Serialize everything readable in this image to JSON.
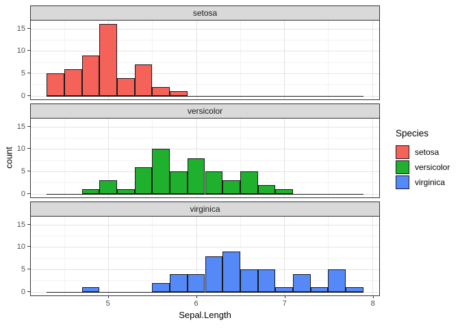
{
  "figure": {
    "background": "#FFFFFF",
    "panel": {
      "border_color": "#333333",
      "strip_fill": "#D9D9D9",
      "grid_major_color": "#E3E3E3",
      "grid_minor_color": "#F2F2F2",
      "bar_stroke_color": "#1A1A1A"
    },
    "x_axis": {
      "title": "Sepal.Length",
      "ticks": [
        5,
        6,
        7,
        8
      ],
      "minor_ticks": [
        4.5,
        5.5,
        6.5,
        7.5
      ],
      "domain": [
        4.12,
        8.08
      ]
    },
    "y_axis": {
      "title": "count",
      "ticks": [
        0,
        5,
        10,
        15
      ],
      "minor_ticks": [
        2.5,
        7.5,
        12.5
      ],
      "domain": [
        -0.8,
        16.8
      ]
    }
  },
  "legend": {
    "title": "Species",
    "items": [
      {
        "label": "setosa",
        "color": "#F4625A"
      },
      {
        "label": "versicolor",
        "color": "#1FB02E"
      },
      {
        "label": "virginica",
        "color": "#5589F7"
      }
    ]
  },
  "chart_data": {
    "type": "bar",
    "subtype": "faceted-histogram",
    "title": "",
    "xlabel": "Sepal.Length",
    "ylabel": "count",
    "bin_start": 4.3,
    "bin_width": 0.2,
    "bin_end": 7.9,
    "xlim": [
      4.12,
      8.08
    ],
    "ylim": [
      -0.8,
      16.8
    ],
    "grid": true,
    "legend_position": "right",
    "bin_edges": [
      4.3,
      4.5,
      4.7,
      4.9,
      5.1,
      5.3,
      5.5,
      5.7,
      5.9,
      6.1,
      6.3,
      6.5,
      6.7,
      6.9,
      7.1,
      7.3,
      7.5,
      7.7,
      7.9
    ],
    "facets": [
      {
        "label": "setosa",
        "color": "#F4625A",
        "counts": [
          5,
          6,
          9,
          16,
          4,
          7,
          2,
          1,
          0,
          0,
          0,
          0,
          0,
          0,
          0,
          0,
          0,
          0
        ]
      },
      {
        "label": "versicolor",
        "color": "#1FB02E",
        "counts": [
          0,
          0,
          1,
          3,
          1,
          6,
          10,
          5,
          8,
          5,
          3,
          5,
          2,
          1,
          0,
          0,
          0,
          0
        ]
      },
      {
        "label": "virginica",
        "color": "#5589F7",
        "counts": [
          0,
          0,
          1,
          0,
          0,
          0,
          2,
          4,
          4,
          8,
          9,
          5,
          5,
          1,
          4,
          1,
          5,
          1
        ]
      }
    ]
  }
}
